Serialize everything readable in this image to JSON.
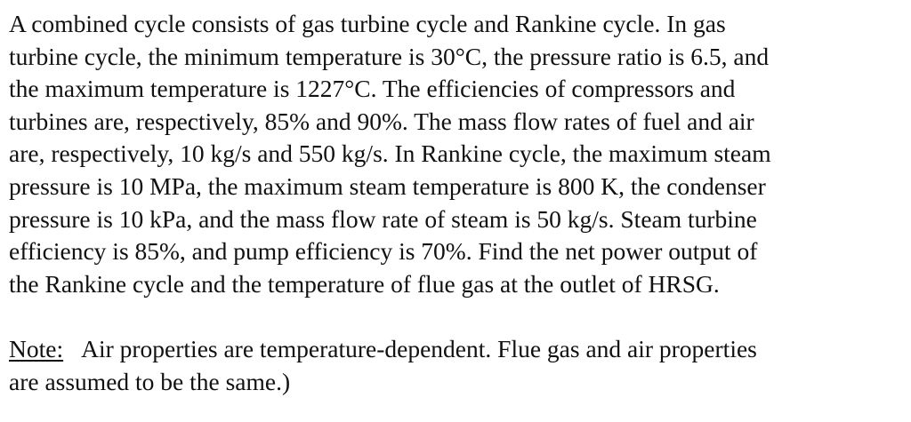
{
  "problem": {
    "lines": [
      "A combined cycle consists of gas turbine cycle and Rankine cycle. In gas",
      "turbine cycle, the minimum temperature is 30°C, the pressure ratio is 6.5, and",
      "the maximum temperature is 1227°C. The efficiencies of compressors and",
      "turbines are, respectively, 85% and 90%. The mass flow rates of fuel and air",
      "are, respectively, 10 kg/s and 550 kg/s. In Rankine cycle, the maximum steam",
      "pressure is 10 MPa, the maximum steam temperature is 800 K, the condenser",
      "pressure is 10 kPa, and the mass flow rate of steam is 50 kg/s. Steam turbine",
      "efficiency is 85%, and pump efficiency is 70%. Find the net power output of",
      "the Rankine cycle and the temperature of flue gas at the outlet of HRSG."
    ]
  },
  "note": {
    "label": "Note:",
    "line1": "Air properties are temperature-dependent. Flue gas and air properties",
    "line2": "are assumed to be the same.)"
  }
}
